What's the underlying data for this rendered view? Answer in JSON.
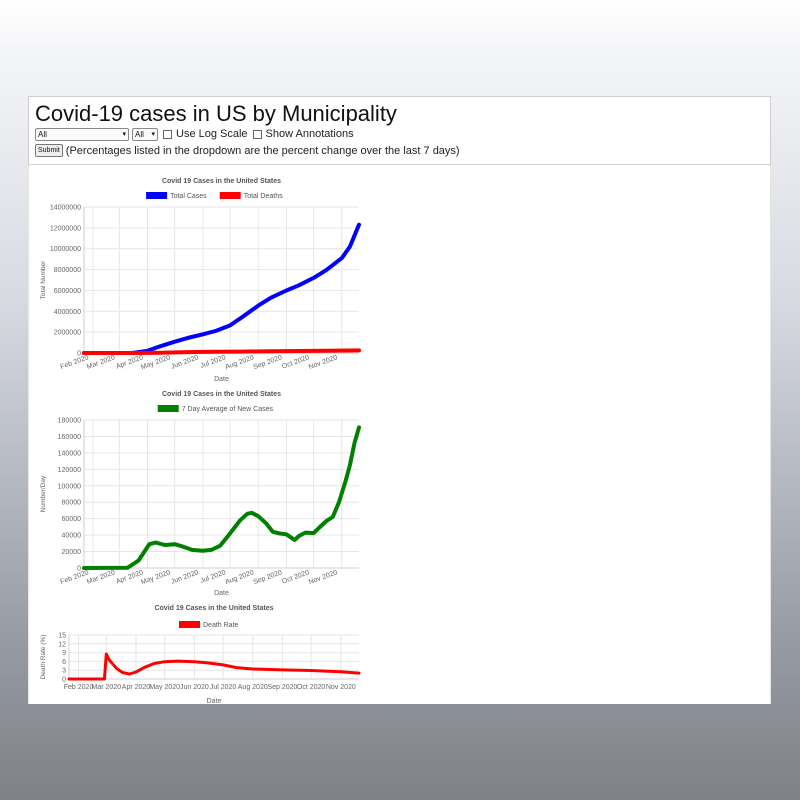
{
  "header": {
    "title": "Covid-19 cases in US by Municipality",
    "municipality_select": "All",
    "range_select": "All",
    "log_scale_label": "Use Log Scale",
    "annotations_label": "Show Annotations",
    "log_scale_checked": false,
    "annotations_checked": false,
    "submit_label": "Submit",
    "note": "(Percentages listed in the dropdown are the percent change over the last 7 days)"
  },
  "chart_data": [
    {
      "type": "line",
      "title": "Covid 19 Cases in the United States",
      "xlabel": "Date",
      "ylabel": "Total Number",
      "x_ticks": [
        "Feb 2020",
        "Mar 2020",
        "Apr 2020",
        "May 2020",
        "Jun 2020",
        "Jul 2020",
        "Aug 2020",
        "Sep 2020",
        "Oct 2020",
        "Nov 2020"
      ],
      "y_ticks": [
        "0",
        "2000000",
        "4000000",
        "6000000",
        "8000000",
        "10000000",
        "12000000",
        "14000000"
      ],
      "ylim": [
        0,
        14000000
      ],
      "xlim": [
        "2020-01-22",
        "2020-11-20"
      ],
      "grid": true,
      "legend_position": "top",
      "series": [
        {
          "name": "Total Cases",
          "color": "#0000ff",
          "x": [
            "2020-01-22",
            "2020-03-01",
            "2020-03-15",
            "2020-04-01",
            "2020-04-15",
            "2020-05-01",
            "2020-05-15",
            "2020-06-01",
            "2020-06-15",
            "2020-07-01",
            "2020-07-15",
            "2020-08-01",
            "2020-08-15",
            "2020-09-01",
            "2020-09-15",
            "2020-10-01",
            "2020-10-15",
            "2020-11-01",
            "2020-11-10",
            "2020-11-20"
          ],
          "y": [
            0,
            50,
            3500,
            215000,
            640000,
            1080000,
            1440000,
            1790000,
            2110000,
            2650000,
            3480000,
            4550000,
            5300000,
            5990000,
            6500000,
            7200000,
            7950000,
            9100000,
            10200000,
            12300000
          ]
        },
        {
          "name": "Total Deaths",
          "color": "#ff0000",
          "x": [
            "2020-01-22",
            "2020-03-15",
            "2020-04-15",
            "2020-05-15",
            "2020-06-15",
            "2020-07-15",
            "2020-08-15",
            "2020-09-15",
            "2020-10-15",
            "2020-11-20"
          ],
          "y": [
            0,
            70,
            30000,
            88000,
            117000,
            137000,
            170000,
            196000,
            218000,
            252000
          ]
        }
      ]
    },
    {
      "type": "line",
      "title": "Covid 19 Cases in the United States",
      "xlabel": "Date",
      "ylabel": "Number/Day",
      "x_ticks": [
        "Feb 2020",
        "Mar 2020",
        "Apr 2020",
        "May 2020",
        "Jun 2020",
        "Jul 2020",
        "Aug 2020",
        "Sep 2020",
        "Oct 2020",
        "Nov 2020"
      ],
      "y_ticks": [
        "0",
        "20000",
        "40000",
        "60000",
        "80000",
        "100000",
        "120000",
        "140000",
        "160000",
        "180000"
      ],
      "ylim": [
        0,
        180000
      ],
      "xlim": [
        "2020-01-22",
        "2020-11-20"
      ],
      "grid": true,
      "legend_position": "top",
      "series": [
        {
          "name": "7 Day Average of New Cases",
          "color": "#008000",
          "x": [
            "2020-01-22",
            "2020-03-10",
            "2020-03-22",
            "2020-04-03",
            "2020-04-10",
            "2020-04-20",
            "2020-05-01",
            "2020-05-10",
            "2020-05-20",
            "2020-06-01",
            "2020-06-10",
            "2020-06-20",
            "2020-06-28",
            "2020-07-05",
            "2020-07-12",
            "2020-07-20",
            "2020-07-25",
            "2020-08-01",
            "2020-08-10",
            "2020-08-17",
            "2020-08-25",
            "2020-09-01",
            "2020-09-10",
            "2020-09-15",
            "2020-09-22",
            "2020-10-01",
            "2020-10-08",
            "2020-10-15",
            "2020-10-22",
            "2020-10-29",
            "2020-11-05",
            "2020-11-10",
            "2020-11-15",
            "2020-11-20"
          ],
          "y": [
            0,
            400,
            9000,
            29000,
            31000,
            28000,
            29000,
            26000,
            22000,
            21000,
            22000,
            27000,
            38000,
            48000,
            58000,
            66000,
            67000,
            63000,
            54000,
            44000,
            42000,
            41000,
            34000,
            39000,
            43000,
            42500,
            50000,
            57000,
            62000,
            80000,
            105000,
            125000,
            152000,
            171000
          ]
        }
      ]
    },
    {
      "type": "line",
      "title": "Covid 19 Cases in the United States",
      "xlabel": "Date",
      "ylabel": "Death Rate (%)",
      "x_ticks": [
        "Feb 2020",
        "Mar 2020",
        "Apr 2020",
        "May 2020",
        "Jun 2020",
        "Jul 2020",
        "Aug 2020",
        "Sep 2020",
        "Oct 2020",
        "Nov 2020"
      ],
      "y_ticks": [
        "0",
        "3",
        "6",
        "9",
        "12",
        "15"
      ],
      "ylim": [
        0,
        15
      ],
      "xlim": [
        "2020-01-22",
        "2020-11-20"
      ],
      "grid": true,
      "legend_position": "top",
      "series": [
        {
          "name": "Death Rate",
          "color": "#ff0000",
          "x": [
            "2020-01-22",
            "2020-02-28",
            "2020-03-01",
            "2020-03-04",
            "2020-03-08",
            "2020-03-12",
            "2020-03-18",
            "2020-03-25",
            "2020-04-01",
            "2020-04-10",
            "2020-04-20",
            "2020-05-01",
            "2020-05-15",
            "2020-06-01",
            "2020-06-15",
            "2020-07-01",
            "2020-07-15",
            "2020-08-01",
            "2020-09-01",
            "2020-10-01",
            "2020-11-01",
            "2020-11-20"
          ],
          "y": [
            0,
            0,
            8.5,
            6.5,
            5.0,
            3.5,
            2.2,
            1.7,
            2.4,
            4.0,
            5.3,
            5.9,
            6.1,
            5.9,
            5.5,
            4.8,
            3.9,
            3.4,
            3.1,
            2.9,
            2.5,
            2.0
          ]
        }
      ]
    }
  ]
}
